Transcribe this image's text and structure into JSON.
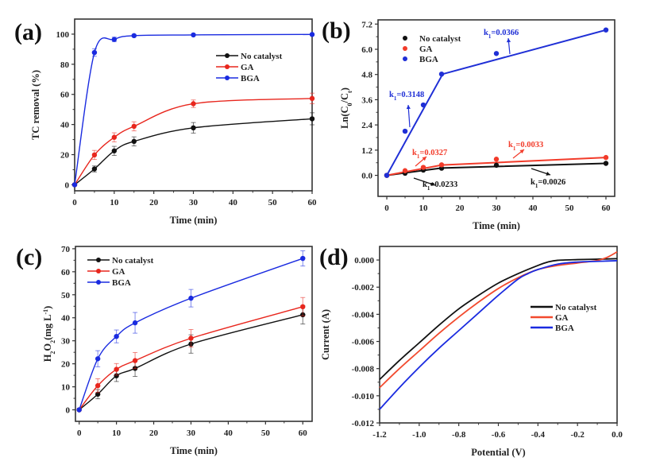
{
  "chart_data": [
    {
      "panel": "(a)",
      "type": "line",
      "title": "",
      "xlabel": "Time (min)",
      "ylabel": "TC removal (%)",
      "xlim": [
        0,
        60
      ],
      "ylim": [
        -4,
        110
      ],
      "xticks": [
        0,
        10,
        20,
        30,
        40,
        50,
        60
      ],
      "yticks": [
        0,
        20,
        40,
        60,
        80,
        100
      ],
      "legend": "right-upper",
      "x": [
        0,
        5,
        10,
        15,
        30,
        60
      ],
      "series": [
        {
          "name": "No catalyst",
          "color": "#111111",
          "values": [
            0,
            10.5,
            22.5,
            28.8,
            37.8,
            43.8
          ],
          "errors": [
            0,
            2,
            3,
            3,
            3.5,
            4
          ]
        },
        {
          "name": "GA",
          "color": "#e8261d",
          "values": [
            0,
            19.8,
            31.5,
            38.8,
            53.8,
            57.3
          ],
          "errors": [
            0,
            3,
            3,
            3,
            2.5,
            3.5
          ]
        },
        {
          "name": "BGA",
          "color": "#1a2be0",
          "values": [
            0,
            87.8,
            96.5,
            99.0,
            99.5,
            99.8
          ],
          "errors": [
            0,
            2.5,
            1.5,
            0.8,
            0.5,
            0.5
          ]
        }
      ]
    },
    {
      "panel": "(b)",
      "type": "scatter",
      "title": "",
      "xlabel": "Time (min)",
      "ylabel": "Ln(C0/Ct)",
      "xlim": [
        -2.4,
        62.4
      ],
      "ylim": [
        -1.0,
        7.4
      ],
      "xticks": [
        0,
        10,
        20,
        30,
        40,
        50,
        60
      ],
      "yticks": [
        0.0,
        1.2,
        2.4,
        3.6,
        4.8,
        6.0,
        7.2
      ],
      "yticklabels": [
        "0.0",
        "1.2",
        "2.4",
        "3.6",
        "4.8",
        "6.0",
        "7.2"
      ],
      "legend": "top-left",
      "x": [
        0,
        5,
        10,
        15,
        30,
        60
      ],
      "series": [
        {
          "name": "No catalyst",
          "color": "#111111",
          "values": [
            0,
            0.1,
            0.25,
            0.34,
            0.48,
            0.57
          ],
          "fit": [
            [
              0,
              0
            ],
            [
              15,
              0.35
            ],
            [
              60,
              0.57
            ]
          ]
        },
        {
          "name": "GA",
          "color": "#f23b2a",
          "values": [
            0,
            0.22,
            0.38,
            0.5,
            0.77,
            0.85
          ],
          "fit": [
            [
              0,
              0
            ],
            [
              15,
              0.49
            ],
            [
              60,
              0.85
            ]
          ]
        },
        {
          "name": "BGA",
          "color": "#1f2fd6",
          "values": [
            0,
            2.1,
            3.35,
            4.82,
            5.8,
            6.92
          ],
          "fit": [
            [
              0,
              0
            ],
            [
              15.3,
              4.82
            ],
            [
              60,
              6.92
            ]
          ]
        }
      ],
      "annotations": [
        {
          "text": "k1=0.3148",
          "color": "#1f2fd6"
        },
        {
          "text": "k1=0.0366",
          "color": "#1f2fd6"
        },
        {
          "text": "k1=0.0327",
          "color": "#f23b2a"
        },
        {
          "text": "k1=0.0033",
          "color": "#f23b2a"
        },
        {
          "text": "k1=0.0233",
          "color": "#111111"
        },
        {
          "text": "k1=0.0026",
          "color": "#111111"
        }
      ]
    },
    {
      "panel": "(c)",
      "type": "line",
      "title": "",
      "xlabel": "Time (min)",
      "ylabel": "H2O2(mg L-1)",
      "xlim": [
        -1,
        62.5
      ],
      "ylim": [
        -5,
        71
      ],
      "xticks": [
        0,
        10,
        20,
        30,
        40,
        50,
        60
      ],
      "yticks": [
        0,
        10,
        20,
        30,
        40,
        50,
        60,
        70
      ],
      "legend": "top-left",
      "x": [
        0,
        5,
        10,
        15,
        30,
        60
      ],
      "series": [
        {
          "name": "No catalyst",
          "color": "#111111",
          "values": [
            0,
            6.8,
            14.8,
            18.0,
            28.6,
            41.3
          ],
          "errors": [
            0,
            2,
            2.5,
            3.5,
            4,
            4
          ]
        },
        {
          "name": "GA",
          "color": "#e8261d",
          "values": [
            0,
            10.5,
            17.6,
            21.4,
            31.1,
            44.8
          ],
          "errors": [
            0,
            3,
            2.5,
            3.5,
            3.8,
            4
          ]
        },
        {
          "name": "BGA",
          "color": "#1a2be0",
          "values": [
            0,
            22.2,
            31.9,
            37.8,
            48.5,
            65.8
          ],
          "errors": [
            0,
            3.5,
            2.8,
            4.5,
            3.8,
            3.3
          ]
        }
      ]
    },
    {
      "panel": "(d)",
      "type": "line",
      "title": "",
      "xlabel": "Potential (V)",
      "ylabel": "Current (A)",
      "xlim": [
        -1.2,
        0.0
      ],
      "ylim": [
        -0.012,
        0.001
      ],
      "xticks": [
        -1.2,
        -1.0,
        -0.8,
        -0.6,
        -0.4,
        -0.2,
        0.0
      ],
      "xticklabels": [
        "-1.2",
        "-1.0",
        "-0.8",
        "-0.6",
        "-0.4",
        "-0.2",
        "0.0"
      ],
      "yticks": [
        0.0,
        -0.002,
        -0.004,
        -0.006,
        -0.008,
        -0.01,
        -0.012
      ],
      "yticklabels": [
        "0.000",
        "-0.002",
        "-0.004",
        "-0.006",
        "-0.008",
        "-0.010",
        "-0.012"
      ],
      "legend": "center-right",
      "series": [
        {
          "name": "No catalyst",
          "color": "#111111",
          "x": [
            -1.2,
            -1.1,
            -1.0,
            -0.9,
            -0.8,
            -0.7,
            -0.6,
            -0.5,
            -0.4,
            -0.35,
            -0.3,
            -0.2,
            -0.1,
            0.0
          ],
          "values": [
            -0.0088,
            -0.0074,
            -0.0061,
            -0.0048,
            -0.0036,
            -0.0026,
            -0.0017,
            -0.001,
            -0.0004,
            -0.00015,
            -2e-05,
            3e-05,
            6e-05,
            0.0001
          ]
        },
        {
          "name": "GA",
          "color": "#f24a2e",
          "x": [
            -1.2,
            -1.1,
            -1.0,
            -0.9,
            -0.8,
            -0.7,
            -0.6,
            -0.5,
            -0.4,
            -0.3,
            -0.2,
            -0.1,
            -0.05,
            0.0
          ],
          "values": [
            -0.0094,
            -0.008,
            -0.0067,
            -0.0054,
            -0.0042,
            -0.0031,
            -0.0021,
            -0.0013,
            -0.0007,
            -0.0004,
            -0.00022,
            -3e-05,
            0.0002,
            0.0006
          ]
        },
        {
          "name": "BGA",
          "color": "#1a2be0",
          "x": [
            -1.2,
            -1.1,
            -1.0,
            -0.9,
            -0.8,
            -0.7,
            -0.6,
            -0.5,
            -0.45,
            -0.4,
            -0.3,
            -0.2,
            -0.1,
            0.0
          ],
          "values": [
            -0.011,
            -0.0094,
            -0.0079,
            -0.0065,
            -0.0052,
            -0.0039,
            -0.0026,
            -0.0014,
            -0.001,
            -0.0007,
            -0.0003,
            -0.00015,
            -0.0001,
            -5e-05
          ]
        }
      ]
    }
  ]
}
